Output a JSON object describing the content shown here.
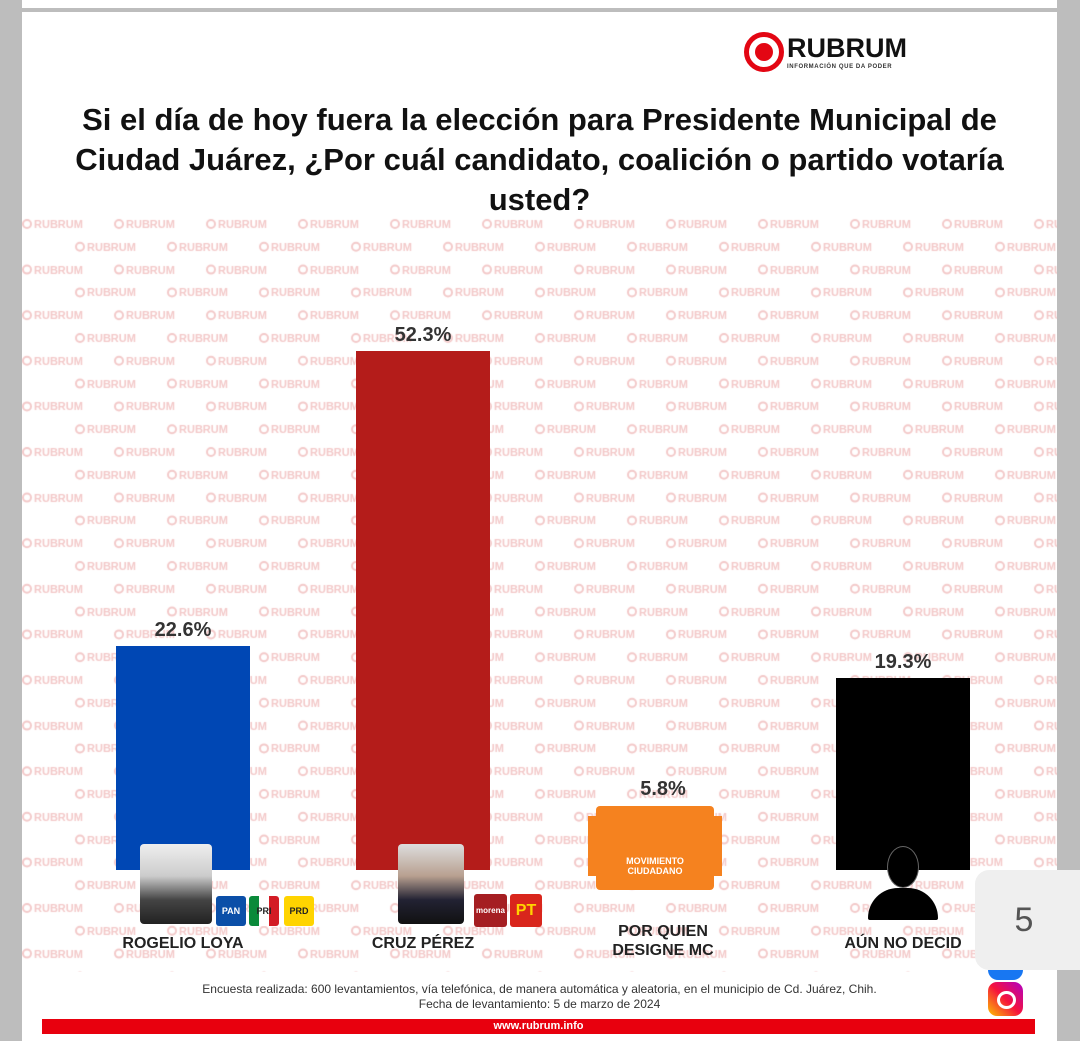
{
  "logo": {
    "name": "RUBRUM",
    "tagline": "INFORMACIÓN QUE DA PODER"
  },
  "watermark_text": "RUBRUM",
  "chart_data": {
    "type": "bar",
    "title": "Si el día de hoy fuera la elección para Presidente Municipal de Ciudad Juárez, ¿Por cuál candidato, coalición o partido votaría usted?",
    "categories": [
      "ROGELIO LOYA",
      "CRUZ PÉREZ",
      "POR QUIEN DESIGNE MC",
      "AÚN NO DECID"
    ],
    "values": [
      22.6,
      52.3,
      5.8,
      19.3
    ],
    "value_labels": [
      "22.6%",
      "52.3%",
      "5.8%",
      "19.3%"
    ],
    "colors": [
      "#0047b4",
      "#b41c1a",
      "#f5821f",
      "#000000"
    ],
    "parties": [
      [
        "PAN",
        "PRI",
        "PRD"
      ],
      [
        "morena",
        "PT"
      ],
      [
        "MOVIMIENTO CIUDADANO"
      ],
      []
    ],
    "ylim": [
      0,
      55
    ],
    "xlabel": "",
    "ylabel": ""
  },
  "footer": {
    "line1": "Encuesta realizada: 600 levantamientos, vía telefónica, de manera automática y aleatoria, en el municipio de Cd. Juárez, Chih.",
    "line2": "Fecha de levantamiento: 5 de marzo de 2024",
    "url": "www.rubrum.info"
  },
  "page_number": "5"
}
